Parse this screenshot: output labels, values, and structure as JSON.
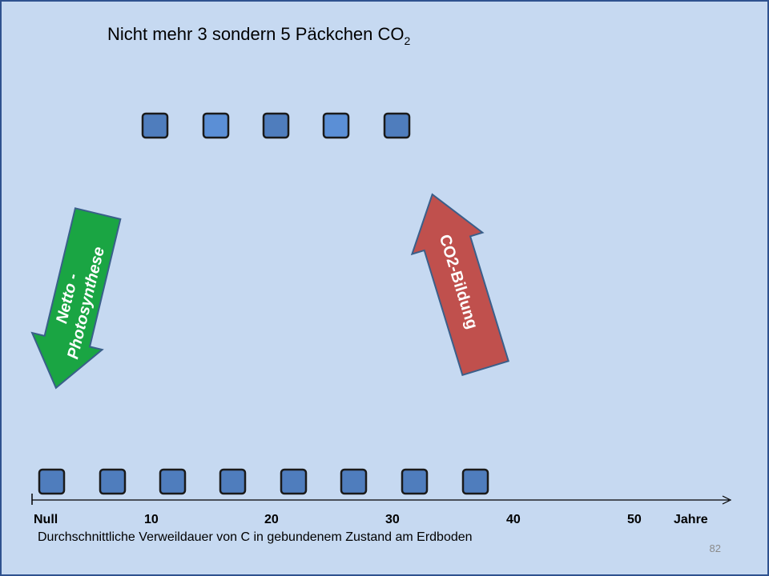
{
  "title": {
    "text": "Nicht mehr 3 sondern 5 Päckchen CO",
    "subscript": "2"
  },
  "arrows": {
    "photosynthesis": [
      "Netto -",
      "Photosynthese"
    ],
    "co2_formation": "CO2-Bildung"
  },
  "axis": {
    "labels": [
      "Null",
      "10",
      "20",
      "30",
      "40",
      "50",
      "Jahre"
    ],
    "caption": "Durchschnittliche Verweildauer von C in gebundenem Zustand am Erdboden"
  },
  "page_number": "82"
}
